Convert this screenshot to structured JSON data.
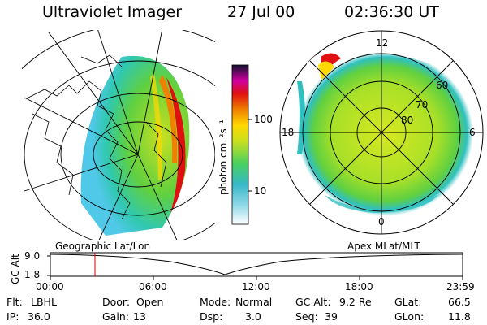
{
  "header": {
    "title": "Ultraviolet Imager",
    "date": "27 Jul 00",
    "time": "02:36:30 UT"
  },
  "colorbar": {
    "unit_label": "photon cm⁻²s⁻¹",
    "ticks": [
      "100",
      "10"
    ],
    "scale": "log"
  },
  "left_panel": {
    "caption": "Geographic Lat/Lon"
  },
  "right_panel": {
    "caption": "Apex MLat/MLT",
    "mlt_labels": [
      "12",
      "18",
      "6",
      "0"
    ],
    "mlat_labels": [
      "60",
      "70",
      "80"
    ]
  },
  "altitude_plot": {
    "axis_label": "GC Alt",
    "y_ticks": [
      "9.0",
      "1.8"
    ],
    "x_ticks": [
      "00:00",
      "06:00",
      "12:00",
      "18:00",
      "23:59"
    ],
    "marker_time": "02:36:30"
  },
  "info": {
    "flt_label": "Flt:",
    "flt_value": "LBHL",
    "ip_label": "IP:",
    "ip_value": "36.0",
    "door_label": "Door:",
    "door_value": "Open",
    "gain_label": "Gain:",
    "gain_value": "13",
    "mode_label": "Mode:",
    "mode_value": "Normal",
    "dsp_label": "Dsp:",
    "dsp_value": "3.0",
    "gcalt_label": "GC Alt:",
    "gcalt_value": "9.2 Re",
    "seq_label": "Seq:",
    "seq_value": "39",
    "glat_label": "GLat:",
    "glat_value": "66.5",
    "glon_label": "GLon:",
    "glon_value": "11.8"
  },
  "colors": {
    "colorbar_stops": [
      "#ffffff",
      "#38b8c8",
      "#48d060",
      "#d8e818",
      "#ffd800",
      "#f08000",
      "#e01010",
      "#d000a0",
      "#101030"
    ]
  }
}
